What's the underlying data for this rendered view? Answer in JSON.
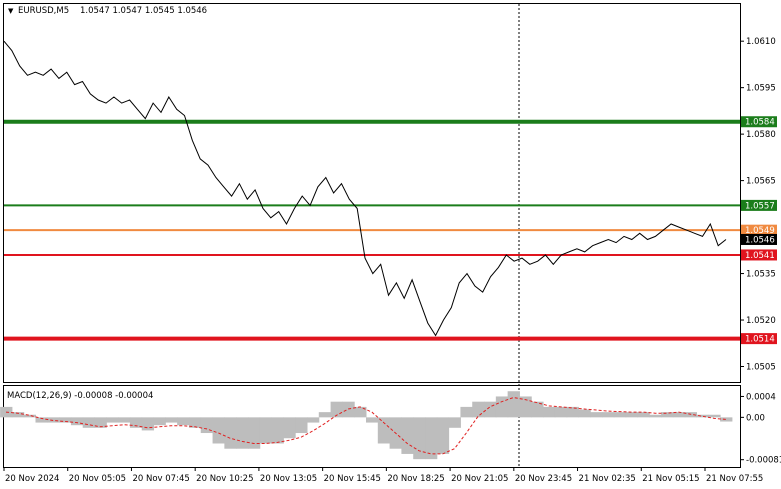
{
  "header": {
    "symbol": "EURUSD,M5",
    "ohlc": "1.0547 1.0547 1.0545 1.0546",
    "dropdown_glyph": "▼"
  },
  "macd": {
    "label": "MACD(12,26,9) -0.00008 -0.00004",
    "axis_ticks": [
      "0.0004",
      "0.00",
      "-0.00081"
    ],
    "histogram_color": "#bdbdbd",
    "signal_color": "#e02020"
  },
  "price_axis": {
    "ticks": [
      "1.0610",
      "1.0595",
      "1.0580",
      "1.0565",
      "1.0535",
      "1.0520",
      "1.0505"
    ]
  },
  "levels": [
    {
      "name": "level-1-0584",
      "label": "1.0584",
      "price": 1.0584,
      "color": "#1b7d1b",
      "thick": true
    },
    {
      "name": "level-1-0557",
      "label": "1.0557",
      "price": 1.0557,
      "color": "#1b7d1b",
      "thick": false
    },
    {
      "name": "level-1-0549",
      "label": "1.0549",
      "price": 1.0549,
      "color": "#f08a40",
      "thick": false
    },
    {
      "name": "level-1-0541",
      "label": "1.0541",
      "price": 1.0541,
      "color": "#e0141e",
      "thick": false
    },
    {
      "name": "level-1-0514",
      "label": "1.0514",
      "price": 1.0514,
      "color": "#e0141e",
      "thick": true
    }
  ],
  "current_price": {
    "label": "1.0546",
    "price": 1.0546
  },
  "time_axis": {
    "ticks": [
      "20 Nov 2024",
      "20 Nov 05:05",
      "20 Nov 07:45",
      "20 Nov 10:25",
      "20 Nov 13:05",
      "20 Nov 15:45",
      "20 Nov 18:25",
      "20 Nov 21:05",
      "20 Nov 23:45",
      "21 Nov 02:35",
      "21 Nov 05:15",
      "21 Nov 07:55"
    ]
  },
  "chart_data": {
    "type": "line",
    "series": [
      {
        "values": [
          1.061,
          1.0607,
          1.0602,
          1.0599,
          1.06,
          1.0599,
          1.0601,
          1.0598,
          1.06,
          1.0596,
          1.0597,
          1.0593,
          1.0591,
          1.059,
          1.0592,
          1.059,
          1.0591,
          1.0588,
          1.0585,
          1.059,
          1.0587,
          1.0592,
          1.0588,
          1.0586,
          1.0578,
          1.0572,
          1.057,
          1.0566,
          1.0563,
          1.056,
          1.0564,
          1.0559,
          1.0562,
          1.0556,
          1.0553,
          1.0555,
          1.0551,
          1.0556,
          1.056,
          1.0557,
          1.0563,
          1.0566,
          1.0561,
          1.0564,
          1.0559,
          1.0556,
          1.054,
          1.0535,
          1.0538,
          1.0528,
          1.0532,
          1.0527,
          1.0533,
          1.0526,
          1.0519,
          1.0515,
          1.052,
          1.0524,
          1.0532,
          1.0535,
          1.0531,
          1.0529,
          1.0534,
          1.0537,
          1.0541,
          1.0539,
          1.054,
          1.0538,
          1.0539,
          1.0541,
          1.0538,
          1.0541,
          1.0542,
          1.0543,
          1.0542,
          1.0544,
          1.0545,
          1.0546,
          1.0545,
          1.0547,
          1.0546,
          1.0548,
          1.0546,
          1.0547,
          1.0549,
          1.0551,
          1.055,
          1.0549,
          1.0548,
          1.0547,
          1.0551,
          1.0544,
          1.0546
        ]
      }
    ],
    "ylim": [
      1.05,
      1.0622
    ],
    "grid": false
  },
  "macd_data": {
    "histogram": [
      0.0002,
      0.0001,
      5e-05,
      -0.0001,
      -0.0001,
      -0.0001,
      -0.00015,
      -0.0002,
      -0.0002,
      -0.0001,
      -0.0001,
      -0.0002,
      -0.00025,
      -0.00015,
      -0.0001,
      -0.00015,
      -0.0002,
      -0.0003,
      -0.0005,
      -0.0006,
      -0.0006,
      -0.0006,
      -0.0005,
      -0.0005,
      -0.0004,
      -0.0003,
      -0.0001,
      0.0001,
      0.0003,
      0.0003,
      0.0002,
      -0.0001,
      -0.0005,
      -0.0006,
      -0.0007,
      -0.0008,
      -0.0008,
      -0.0007,
      -0.0002,
      0.0002,
      0.0003,
      0.0003,
      0.0004,
      0.0005,
      0.0004,
      0.0003,
      0.0002,
      0.0002,
      0.0002,
      0.00015,
      0.0001,
      0.0001,
      0.0001,
      0.0001,
      0.0001,
      5e-05,
      0.0001,
      0.0001,
      0.0001,
      5e-05,
      5e-05,
      -8e-05
    ],
    "signal": [
      0.0001,
      8e-05,
      4e-05,
      -2e-05,
      -6e-05,
      -8e-05,
      -0.0001,
      -0.00014,
      -0.00018,
      -0.00016,
      -0.00014,
      -0.00016,
      -0.0002,
      -0.00018,
      -0.00016,
      -0.00016,
      -0.00018,
      -0.00022,
      -0.0003,
      -0.0004,
      -0.00046,
      -0.0005,
      -0.0005,
      -0.00048,
      -0.00044,
      -0.00038,
      -0.00026,
      -0.00012,
      4e-05,
      0.00016,
      0.0002,
      0.0001,
      -0.0001,
      -0.0003,
      -0.0005,
      -0.00064,
      -0.0007,
      -0.0007,
      -0.0006,
      -0.0003,
      2e-05,
      0.0002,
      0.0003,
      0.00038,
      0.00034,
      0.00028,
      0.00022,
      0.0002,
      0.00018,
      0.00016,
      0.00014,
      0.00012,
      0.00011,
      0.0001,
      0.0001,
      8e-05,
      8e-05,
      0.0001,
      6e-05,
      2e-05,
      -2e-05,
      -4e-05
    ],
    "ylim": [
      -0.00095,
      0.0006
    ]
  }
}
